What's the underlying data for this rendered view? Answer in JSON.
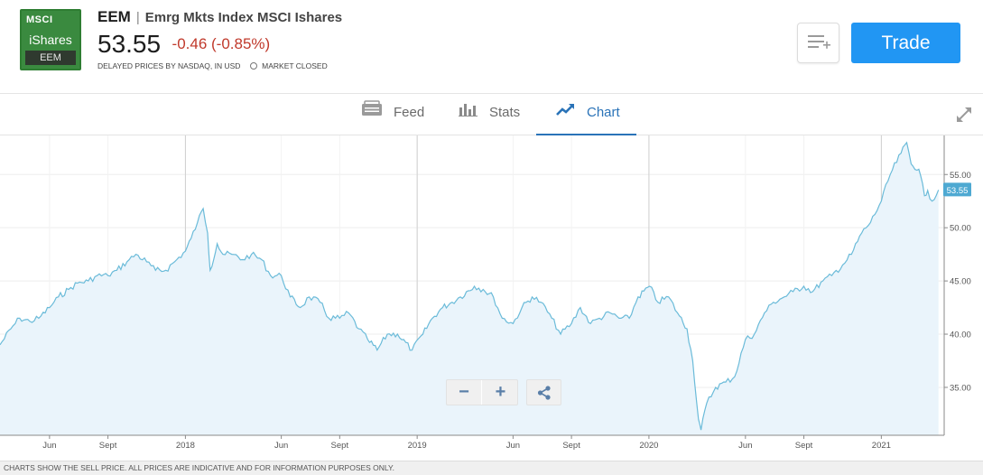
{
  "header": {
    "logo": {
      "brand_top": "MSCI",
      "brand_main": "iShares",
      "ticker": "EEM"
    },
    "symbol": "EEM",
    "separator": "|",
    "name": "Emrg Mkts Index MSCI Ishares",
    "price": "53.55",
    "change": "-0.46 (-0.85%)",
    "delay_note": "DELAYED PRICES BY NASDAQ, IN USD",
    "market_status": "MARKET CLOSED",
    "trade_label": "Trade",
    "watchlist_icon": "list-add-icon"
  },
  "tabs": [
    {
      "label": "Feed",
      "icon": "feed-icon",
      "active": false
    },
    {
      "label": "Stats",
      "icon": "bar-chart-icon",
      "active": false
    },
    {
      "label": "Chart",
      "icon": "line-chart-icon",
      "active": true
    }
  ],
  "controls": {
    "zoom_out": "−",
    "zoom_in": "+",
    "share_icon": "share-icon",
    "expand_icon": "expand-icon"
  },
  "footer": "CHARTS SHOW THE SELL PRICE. ALL PRICES ARE INDICATIVE AND FOR INFORMATION PURPOSES ONLY.",
  "colors": {
    "accent": "#2196f3",
    "negative": "#c0392b",
    "line": "#6bbbd9",
    "fill": "#eaf4fb",
    "badge": "#4ea9d2"
  },
  "chart_data": {
    "type": "area",
    "ylim": [
      30.5,
      58.5
    ],
    "y_ticks": [
      "35.00",
      "40.00",
      "45.00",
      "50.00",
      "55.00"
    ],
    "y_tick_values": [
      35,
      40,
      45,
      50,
      55
    ],
    "x_tick_labels": [
      "Jun",
      "Sept",
      "2018",
      "Jun",
      "Sept",
      "2019",
      "Jun",
      "Sept",
      "2020",
      "Jun",
      "Sept",
      "2021"
    ],
    "x_tick_dates": [
      "2017-06-01",
      "2017-09-01",
      "2018-01-01",
      "2018-06-01",
      "2018-09-01",
      "2019-01-01",
      "2019-06-01",
      "2019-09-01",
      "2020-01-01",
      "2020-06-01",
      "2020-09-01",
      "2021-01-01"
    ],
    "year_lines": [
      "2018-01-01",
      "2019-01-01",
      "2020-01-01",
      "2021-01-01"
    ],
    "last_value_label": "53.55",
    "x_range": [
      "2017-03-15",
      "2021-04-10"
    ],
    "grid": true,
    "series": [
      {
        "x": [
          "2017-03-15",
          "2017-04-01",
          "2017-04-15",
          "2017-05-01",
          "2017-05-15",
          "2017-06-01",
          "2017-06-15",
          "2017-07-01",
          "2017-07-15",
          "2017-08-01",
          "2017-08-15",
          "2017-09-01",
          "2017-09-15",
          "2017-10-01",
          "2017-10-15",
          "2017-11-01",
          "2017-11-15",
          "2017-12-01",
          "2017-12-15",
          "2018-01-01",
          "2018-01-10",
          "2018-01-20",
          "2018-01-29",
          "2018-02-05",
          "2018-02-09",
          "2018-02-20",
          "2018-03-01",
          "2018-03-15",
          "2018-04-01",
          "2018-04-15",
          "2018-05-01",
          "2018-05-15",
          "2018-06-01",
          "2018-06-15",
          "2018-07-01",
          "2018-07-15",
          "2018-08-01",
          "2018-08-15",
          "2018-09-01",
          "2018-09-15",
          "2018-10-01",
          "2018-10-15",
          "2018-10-30",
          "2018-11-15",
          "2018-12-01",
          "2018-12-24",
          "2019-01-10",
          "2019-01-25",
          "2019-02-10",
          "2019-02-25",
          "2019-03-10",
          "2019-04-01",
          "2019-04-15",
          "2019-05-01",
          "2019-05-15",
          "2019-06-01",
          "2019-06-15",
          "2019-07-01",
          "2019-07-15",
          "2019-08-01",
          "2019-08-15",
          "2019-09-01",
          "2019-09-15",
          "2019-10-01",
          "2019-10-15",
          "2019-11-01",
          "2019-11-15",
          "2019-12-01",
          "2019-12-15",
          "2020-01-02",
          "2020-01-15",
          "2020-02-01",
          "2020-02-15",
          "2020-03-01",
          "2020-03-10",
          "2020-03-19",
          "2020-03-23",
          "2020-04-01",
          "2020-04-15",
          "2020-05-01",
          "2020-05-15",
          "2020-06-01",
          "2020-06-15",
          "2020-07-01",
          "2020-07-15",
          "2020-08-01",
          "2020-08-15",
          "2020-09-01",
          "2020-09-15",
          "2020-10-01",
          "2020-10-15",
          "2020-11-01",
          "2020-11-15",
          "2020-12-01",
          "2020-12-15",
          "2021-01-01",
          "2021-01-15",
          "2021-02-01",
          "2021-02-10",
          "2021-02-17",
          "2021-03-01",
          "2021-03-10",
          "2021-03-15",
          "2021-03-22",
          "2021-04-01"
        ],
        "values": [
          39.0,
          40.5,
          41.5,
          41.2,
          41.5,
          42.5,
          43.5,
          44.2,
          44.8,
          45.0,
          45.5,
          45.5,
          46.0,
          46.8,
          47.5,
          46.8,
          46.0,
          46.0,
          46.8,
          47.8,
          49.0,
          50.5,
          51.8,
          49.5,
          46.0,
          48.5,
          47.5,
          47.5,
          47.0,
          47.5,
          47.0,
          45.5,
          45.5,
          43.5,
          42.5,
          43.5,
          43.0,
          41.5,
          41.5,
          42.0,
          40.5,
          39.5,
          38.5,
          40.0,
          40.0,
          38.5,
          40.0,
          41.5,
          42.5,
          43.0,
          43.5,
          44.5,
          44.2,
          43.5,
          41.5,
          41.0,
          42.5,
          43.5,
          43.0,
          41.5,
          40.0,
          41.0,
          42.5,
          41.0,
          41.5,
          42.0,
          41.5,
          41.5,
          43.5,
          44.5,
          43.0,
          43.5,
          42.0,
          40.5,
          37.5,
          32.0,
          31.0,
          33.5,
          35.0,
          35.5,
          36.0,
          39.5,
          40.0,
          42.0,
          43.0,
          43.5,
          44.0,
          44.5,
          44.0,
          45.0,
          45.5,
          46.5,
          47.5,
          49.5,
          50.5,
          52.5,
          55.0,
          57.0,
          58.0,
          56.0,
          55.5,
          53.0,
          53.5,
          52.5,
          53.55
        ]
      }
    ]
  }
}
